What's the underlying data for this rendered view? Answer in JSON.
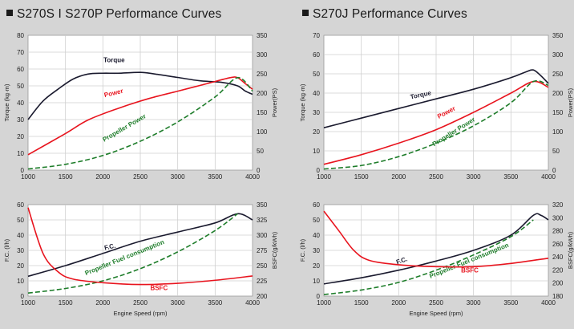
{
  "panels": [
    {
      "title": "S270S I S270P Performance Curves"
    },
    {
      "title": "S270J Performance Curves"
    }
  ],
  "chart_data": [
    {
      "type": "line",
      "title": "",
      "xlabel": "",
      "ylabel": "Torque (kg·m)",
      "y2label": "Power(PS)",
      "xlim": [
        1000,
        4000
      ],
      "ylim": [
        0,
        80
      ],
      "y2lim": [
        0,
        350
      ],
      "x_ticks": [
        "1000",
        "1500",
        "2000",
        "2500",
        "3000",
        "3500",
        "4000"
      ],
      "y_ticks": [
        "0",
        "10",
        "20",
        "30",
        "40",
        "50",
        "60",
        "70",
        "80"
      ],
      "y2_ticks": [
        "0",
        "50",
        "100",
        "150",
        "200",
        "250",
        "300",
        "350"
      ],
      "grid": true,
      "series": [
        {
          "name": "Torque",
          "axis": "left",
          "color": "#1a1a2e",
          "dash": false,
          "x": [
            1000,
            1200,
            1400,
            1600,
            1800,
            2000,
            2200,
            2500,
            2700,
            3000,
            3300,
            3600,
            3800,
            3900,
            4000
          ],
          "y": [
            30,
            41,
            48,
            54,
            57,
            57.5,
            57.5,
            58,
            57,
            55,
            53,
            52,
            50,
            47,
            45
          ]
        },
        {
          "name": "Power",
          "axis": "right",
          "color": "#e8141e",
          "dash": false,
          "x": [
            1000,
            1500,
            1800,
            2200,
            2600,
            3000,
            3400,
            3700,
            3800,
            3900,
            4000
          ],
          "y": [
            40,
            95,
            130,
            160,
            185,
            205,
            225,
            240,
            240,
            225,
            210
          ]
        },
        {
          "name": "Propeller Power",
          "axis": "right",
          "color": "#1e7d2a",
          "dash": true,
          "x": [
            1000,
            1500,
            2000,
            2500,
            3000,
            3500,
            3800,
            4000
          ],
          "y": [
            3,
            15,
            38,
            75,
            125,
            190,
            240,
            205
          ]
        }
      ]
    },
    {
      "type": "line",
      "title": "",
      "xlabel": "",
      "ylabel": "Torque (kg·m)",
      "y2label": "Power(PS)",
      "xlim": [
        1000,
        4000
      ],
      "ylim": [
        0,
        70
      ],
      "y2lim": [
        0,
        350
      ],
      "x_ticks": [
        "1000",
        "1500",
        "2000",
        "2500",
        "3000",
        "3500",
        "4000"
      ],
      "y_ticks": [
        "0",
        "10",
        "20",
        "30",
        "40",
        "50",
        "60",
        "70"
      ],
      "y2_ticks": [
        "0",
        "50",
        "100",
        "150",
        "200",
        "250",
        "300",
        "350"
      ],
      "grid": true,
      "series": [
        {
          "name": "Torque",
          "axis": "left",
          "color": "#1a1a2e",
          "dash": false,
          "x": [
            1000,
            1500,
            2000,
            2500,
            3000,
            3500,
            3700,
            3800,
            3900,
            4000
          ],
          "y": [
            22,
            27,
            32,
            37,
            42,
            48,
            51,
            52,
            49,
            45
          ]
        },
        {
          "name": "Power",
          "axis": "right",
          "color": "#e8141e",
          "dash": false,
          "x": [
            1000,
            1500,
            2000,
            2500,
            3000,
            3500,
            3800,
            4000
          ],
          "y": [
            15,
            40,
            70,
            105,
            150,
            200,
            230,
            215
          ]
        },
        {
          "name": "Propeller Power",
          "axis": "right",
          "color": "#1e7d2a",
          "dash": true,
          "x": [
            1000,
            1500,
            2000,
            2500,
            3000,
            3500,
            3800,
            4000
          ],
          "y": [
            3,
            12,
            35,
            70,
            115,
            175,
            230,
            220
          ]
        }
      ]
    },
    {
      "type": "line",
      "title": "",
      "xlabel": "Engine Speed (rpm)",
      "ylabel": "F.C. (l/h)",
      "y2label": "BSFC(g/kWh)",
      "xlim": [
        1000,
        4000
      ],
      "ylim": [
        0,
        60
      ],
      "y2lim": [
        200,
        350
      ],
      "x_ticks": [
        "1000",
        "1500",
        "2000",
        "2500",
        "3000",
        "3500",
        "4000"
      ],
      "y_ticks": [
        "0",
        "10",
        "20",
        "30",
        "40",
        "50",
        "60"
      ],
      "y2_ticks": [
        "200",
        "225",
        "250",
        "275",
        "300",
        "325",
        "350"
      ],
      "grid": true,
      "series": [
        {
          "name": "F.C.",
          "axis": "left",
          "color": "#1a1a2e",
          "dash": false,
          "x": [
            1000,
            1500,
            2000,
            2500,
            3000,
            3500,
            3800,
            4000
          ],
          "y": [
            13,
            20,
            28,
            36,
            42,
            48,
            54,
            50
          ]
        },
        {
          "name": "Propeller Fuel consumption",
          "axis": "left",
          "color": "#1e7d2a",
          "dash": true,
          "x": [
            1000,
            1500,
            2000,
            2500,
            3000,
            3500,
            3800
          ],
          "y": [
            2,
            5,
            10,
            18,
            29,
            43,
            54
          ]
        },
        {
          "name": "BSFC",
          "axis": "right",
          "color": "#e8141e",
          "dash": false,
          "x": [
            1000,
            1200,
            1400,
            1600,
            2000,
            2500,
            3000,
            3500,
            4000
          ],
          "y": [
            345,
            270,
            240,
            228,
            222,
            219,
            221,
            226,
            233
          ]
        }
      ]
    },
    {
      "type": "line",
      "title": "",
      "xlabel": "Engine Speed (rpm)",
      "ylabel": "F.C. (l/h)",
      "y2label": "BSFC(g/kWh)",
      "xlim": [
        1000,
        4000
      ],
      "ylim": [
        0,
        60
      ],
      "y2lim": [
        180,
        320
      ],
      "x_ticks": [
        "1000",
        "1500",
        "2000",
        "2500",
        "3000",
        "3500",
        "4000"
      ],
      "y_ticks": [
        "0",
        "10",
        "20",
        "30",
        "40",
        "50",
        "60"
      ],
      "y2_ticks": [
        "180",
        "200",
        "220",
        "240",
        "260",
        "280",
        "300",
        "320"
      ],
      "grid": true,
      "series": [
        {
          "name": "F.C.",
          "axis": "left",
          "color": "#1a1a2e",
          "dash": false,
          "x": [
            1000,
            1500,
            2000,
            2500,
            3000,
            3500,
            3800,
            3900,
            4000
          ],
          "y": [
            8,
            12,
            17,
            23,
            30,
            40,
            53,
            53,
            50
          ]
        },
        {
          "name": "Propeller Fuel consumption",
          "axis": "left",
          "color": "#1e7d2a",
          "dash": true,
          "x": [
            1000,
            1500,
            2000,
            2500,
            3000,
            3500,
            3800
          ],
          "y": [
            1,
            4,
            9,
            17,
            27,
            39,
            50
          ]
        },
        {
          "name": "BSFC",
          "axis": "right",
          "color": "#e8141e",
          "dash": false,
          "x": [
            1000,
            1200,
            1400,
            1600,
            2000,
            2500,
            3000,
            3500,
            4000
          ],
          "y": [
            310,
            280,
            250,
            235,
            228,
            225,
            225,
            230,
            238
          ]
        }
      ]
    }
  ]
}
